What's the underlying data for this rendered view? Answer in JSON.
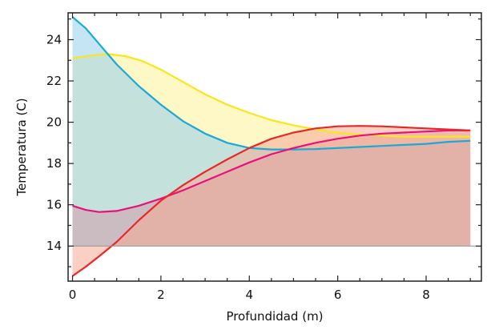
{
  "chart_data": {
    "type": "area",
    "title": "",
    "xlabel": "Profundidad (m)",
    "ylabel": "Temperatura (C)",
    "xlim": [
      -0.1,
      9.25
    ],
    "ylim": [
      12.3,
      25.3
    ],
    "baseline": 14,
    "grid": false,
    "x_ticks": [
      0,
      2,
      4,
      6,
      8
    ],
    "y_ticks": [
      14,
      16,
      18,
      20,
      22,
      24
    ],
    "series": [
      {
        "color": "#f8e71c",
        "fill": "rgba(252,242,140,0.5)",
        "points": [
          [
            0.0,
            23.1
          ],
          [
            0.5,
            23.25
          ],
          [
            0.8,
            23.3
          ],
          [
            1.2,
            23.2
          ],
          [
            1.6,
            22.95
          ],
          [
            2.0,
            22.55
          ],
          [
            2.5,
            21.95
          ],
          [
            3.0,
            21.35
          ],
          [
            3.5,
            20.85
          ],
          [
            4.0,
            20.45
          ],
          [
            4.5,
            20.1
          ],
          [
            5.0,
            19.85
          ],
          [
            5.5,
            19.65
          ],
          [
            6.0,
            19.5
          ],
          [
            6.5,
            19.4
          ],
          [
            7.0,
            19.35
          ],
          [
            7.5,
            19.3
          ],
          [
            8.0,
            19.3
          ],
          [
            8.5,
            19.3
          ],
          [
            9.0,
            19.3
          ]
        ]
      },
      {
        "color": "#1aa9d6",
        "fill": "rgba(150,208,236,0.55)",
        "points": [
          [
            0.0,
            25.1
          ],
          [
            0.3,
            24.55
          ],
          [
            0.6,
            23.8
          ],
          [
            1.0,
            22.8
          ],
          [
            1.5,
            21.75
          ],
          [
            2.0,
            20.85
          ],
          [
            2.5,
            20.05
          ],
          [
            3.0,
            19.45
          ],
          [
            3.5,
            19.0
          ],
          [
            4.0,
            18.75
          ],
          [
            4.5,
            18.68
          ],
          [
            5.0,
            18.68
          ],
          [
            5.5,
            18.7
          ],
          [
            6.0,
            18.75
          ],
          [
            6.5,
            18.8
          ],
          [
            7.0,
            18.85
          ],
          [
            7.5,
            18.9
          ],
          [
            8.0,
            18.95
          ],
          [
            8.5,
            19.05
          ],
          [
            9.0,
            19.1
          ]
        ]
      },
      {
        "color": "#e8107a",
        "fill": "rgba(210,150,170,0.5)",
        "points": [
          [
            0.0,
            15.95
          ],
          [
            0.3,
            15.75
          ],
          [
            0.6,
            15.65
          ],
          [
            1.0,
            15.7
          ],
          [
            1.5,
            15.95
          ],
          [
            2.0,
            16.3
          ],
          [
            2.5,
            16.7
          ],
          [
            3.0,
            17.15
          ],
          [
            3.5,
            17.6
          ],
          [
            4.0,
            18.05
          ],
          [
            4.5,
            18.45
          ],
          [
            5.0,
            18.75
          ],
          [
            5.5,
            19.0
          ],
          [
            6.0,
            19.2
          ],
          [
            6.5,
            19.35
          ],
          [
            7.0,
            19.45
          ],
          [
            7.5,
            19.5
          ],
          [
            8.0,
            19.55
          ],
          [
            8.5,
            19.6
          ],
          [
            9.0,
            19.6
          ]
        ]
      },
      {
        "color": "#e82828",
        "fill": "rgba(246,170,150,0.55)",
        "points": [
          [
            0.0,
            12.55
          ],
          [
            0.3,
            13.0
          ],
          [
            0.6,
            13.5
          ],
          [
            1.0,
            14.2
          ],
          [
            1.5,
            15.25
          ],
          [
            2.0,
            16.2
          ],
          [
            2.5,
            16.95
          ],
          [
            3.0,
            17.6
          ],
          [
            3.5,
            18.2
          ],
          [
            4.0,
            18.75
          ],
          [
            4.5,
            19.2
          ],
          [
            5.0,
            19.5
          ],
          [
            5.5,
            19.7
          ],
          [
            6.0,
            19.8
          ],
          [
            6.5,
            19.82
          ],
          [
            7.0,
            19.8
          ],
          [
            7.5,
            19.75
          ],
          [
            8.0,
            19.7
          ],
          [
            8.5,
            19.65
          ],
          [
            9.0,
            19.6
          ]
        ]
      }
    ]
  }
}
